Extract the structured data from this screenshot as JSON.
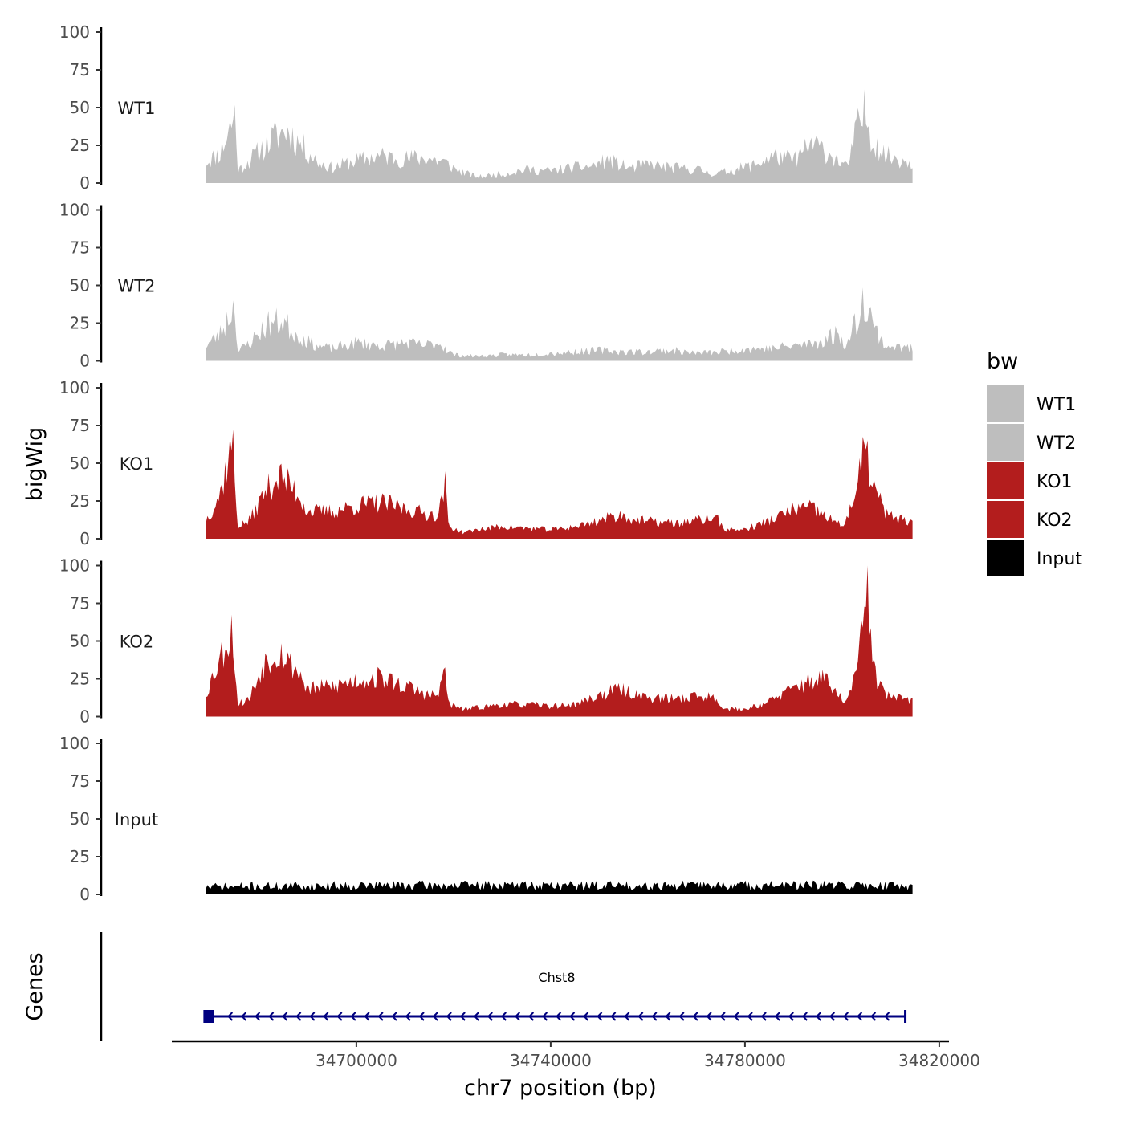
{
  "chart_data": {
    "type": "area",
    "ylabel": "bigWig",
    "xlabel": "chr7 position (bp)",
    "genes_label": "Genes",
    "legend_title": "bw",
    "region": [
      34662000,
      34822000
    ],
    "data_range": [
      34669000,
      34814500
    ],
    "xticks": [
      {
        "value": 34700000,
        "label": "34700000"
      },
      {
        "value": 34740000,
        "label": "34740000"
      },
      {
        "value": 34780000,
        "label": "34780000"
      },
      {
        "value": 34820000,
        "label": "34820000"
      }
    ],
    "ylim": [
      0,
      100
    ],
    "yticks": [
      "0",
      "25",
      "50",
      "75",
      "100"
    ],
    "series": [
      {
        "name": "WT1",
        "color": "#bebebe",
        "profile": [
          [
            34669000,
            14
          ],
          [
            34672000,
            20
          ],
          [
            34675000,
            46
          ],
          [
            34675600,
            8
          ],
          [
            34678000,
            15
          ],
          [
            34683000,
            30
          ],
          [
            34685500,
            35
          ],
          [
            34689000,
            24
          ],
          [
            34692000,
            14
          ],
          [
            34695000,
            10
          ],
          [
            34700000,
            15
          ],
          [
            34705000,
            18
          ],
          [
            34710000,
            16
          ],
          [
            34714000,
            17
          ],
          [
            34718000,
            14
          ],
          [
            34721000,
            8
          ],
          [
            34725000,
            4
          ],
          [
            34730000,
            6
          ],
          [
            34735000,
            9
          ],
          [
            34740000,
            8
          ],
          [
            34744000,
            10
          ],
          [
            34748000,
            11
          ],
          [
            34752000,
            15
          ],
          [
            34756000,
            10
          ],
          [
            34760000,
            12
          ],
          [
            34765000,
            10
          ],
          [
            34770000,
            9
          ],
          [
            34774000,
            6
          ],
          [
            34778000,
            9
          ],
          [
            34782000,
            12
          ],
          [
            34786000,
            18
          ],
          [
            34790000,
            15
          ],
          [
            34794000,
            26
          ],
          [
            34798000,
            18
          ],
          [
            34801000,
            10
          ],
          [
            34803500,
            40
          ],
          [
            34804800,
            46
          ],
          [
            34806500,
            28
          ],
          [
            34809000,
            18
          ],
          [
            34814500,
            14
          ]
        ],
        "noise": 0.4,
        "seed": 11
      },
      {
        "name": "WT2",
        "color": "#bebebe",
        "profile": [
          [
            34669000,
            10
          ],
          [
            34672000,
            18
          ],
          [
            34675000,
            38
          ],
          [
            34675600,
            6
          ],
          [
            34678000,
            12
          ],
          [
            34682000,
            25
          ],
          [
            34685000,
            26
          ],
          [
            34688000,
            16
          ],
          [
            34692000,
            10
          ],
          [
            34695000,
            8
          ],
          [
            34700000,
            12
          ],
          [
            34705000,
            10
          ],
          [
            34710000,
            12
          ],
          [
            34714000,
            10
          ],
          [
            34717000,
            12
          ],
          [
            34720000,
            4
          ],
          [
            34725000,
            3
          ],
          [
            34730000,
            4
          ],
          [
            34735000,
            4
          ],
          [
            34740000,
            5
          ],
          [
            34745000,
            6
          ],
          [
            34750000,
            7
          ],
          [
            34755000,
            6
          ],
          [
            34760000,
            6
          ],
          [
            34765000,
            7
          ],
          [
            34770000,
            5
          ],
          [
            34775000,
            6
          ],
          [
            34780000,
            8
          ],
          [
            34785000,
            8
          ],
          [
            34790000,
            10
          ],
          [
            34795000,
            12
          ],
          [
            34799000,
            18
          ],
          [
            34801000,
            10
          ],
          [
            34803500,
            32
          ],
          [
            34804800,
            44
          ],
          [
            34806500,
            22
          ],
          [
            34809000,
            10
          ],
          [
            34814500,
            8
          ]
        ],
        "noise": 0.4,
        "seed": 23
      },
      {
        "name": "KO1",
        "color": "#b31d1d",
        "profile": [
          [
            34669000,
            12
          ],
          [
            34672000,
            30
          ],
          [
            34674500,
            66
          ],
          [
            34675500,
            8
          ],
          [
            34678000,
            12
          ],
          [
            34681000,
            30
          ],
          [
            34684000,
            42
          ],
          [
            34688000,
            30
          ],
          [
            34690000,
            18
          ],
          [
            34695000,
            18
          ],
          [
            34700000,
            22
          ],
          [
            34705000,
            24
          ],
          [
            34710000,
            20
          ],
          [
            34715000,
            16
          ],
          [
            34717000,
            16
          ],
          [
            34718200,
            38
          ],
          [
            34719000,
            8
          ],
          [
            34722000,
            4
          ],
          [
            34725000,
            6
          ],
          [
            34730000,
            8
          ],
          [
            34735000,
            7
          ],
          [
            34740000,
            6
          ],
          [
            34745000,
            8
          ],
          [
            34750000,
            12
          ],
          [
            34754000,
            16
          ],
          [
            34758000,
            12
          ],
          [
            34762000,
            11
          ],
          [
            34766000,
            10
          ],
          [
            34770000,
            12
          ],
          [
            34774000,
            14
          ],
          [
            34776000,
            6
          ],
          [
            34780000,
            6
          ],
          [
            34785000,
            12
          ],
          [
            34788000,
            16
          ],
          [
            34790000,
            20
          ],
          [
            34794000,
            20
          ],
          [
            34797000,
            14
          ],
          [
            34800000,
            8
          ],
          [
            34803000,
            30
          ],
          [
            34804500,
            60
          ],
          [
            34806500,
            35
          ],
          [
            34809000,
            16
          ],
          [
            34814500,
            10
          ]
        ],
        "noise": 0.3,
        "seed": 37
      },
      {
        "name": "KO2",
        "color": "#b31d1d",
        "profile": [
          [
            34669000,
            15
          ],
          [
            34672000,
            40
          ],
          [
            34674500,
            58
          ],
          [
            34675500,
            8
          ],
          [
            34678000,
            12
          ],
          [
            34681000,
            36
          ],
          [
            34684000,
            44
          ],
          [
            34688000,
            30
          ],
          [
            34690000,
            18
          ],
          [
            34695000,
            20
          ],
          [
            34700000,
            24
          ],
          [
            34705000,
            26
          ],
          [
            34710000,
            20
          ],
          [
            34715000,
            14
          ],
          [
            34717000,
            14
          ],
          [
            34718200,
            34
          ],
          [
            34719000,
            8
          ],
          [
            34722000,
            5
          ],
          [
            34725000,
            6
          ],
          [
            34730000,
            8
          ],
          [
            34735000,
            8
          ],
          [
            34740000,
            7
          ],
          [
            34745000,
            8
          ],
          [
            34750000,
            14
          ],
          [
            34754000,
            18
          ],
          [
            34758000,
            14
          ],
          [
            34762000,
            12
          ],
          [
            34766000,
            12
          ],
          [
            34770000,
            14
          ],
          [
            34774000,
            12
          ],
          [
            34776000,
            5
          ],
          [
            34780000,
            5
          ],
          [
            34785000,
            10
          ],
          [
            34788000,
            15
          ],
          [
            34792000,
            22
          ],
          [
            34796000,
            26
          ],
          [
            34799000,
            14
          ],
          [
            34801000,
            10
          ],
          [
            34803000,
            30
          ],
          [
            34804700,
            68
          ],
          [
            34805000,
            98
          ],
          [
            34806500,
            30
          ],
          [
            34809000,
            14
          ],
          [
            34814500,
            10
          ]
        ],
        "noise": 0.3,
        "seed": 53
      },
      {
        "name": "Input",
        "color": "#000000",
        "profile": [
          [
            34669000,
            5
          ],
          [
            34700000,
            6
          ],
          [
            34740000,
            6
          ],
          [
            34780000,
            6
          ],
          [
            34814500,
            6
          ]
        ],
        "noise": 0.55,
        "seed": 71
      }
    ],
    "genes": [
      {
        "name": "Chst8",
        "start": 34669500,
        "end": 34813000,
        "strand": "-",
        "color": "#000080"
      }
    ]
  }
}
